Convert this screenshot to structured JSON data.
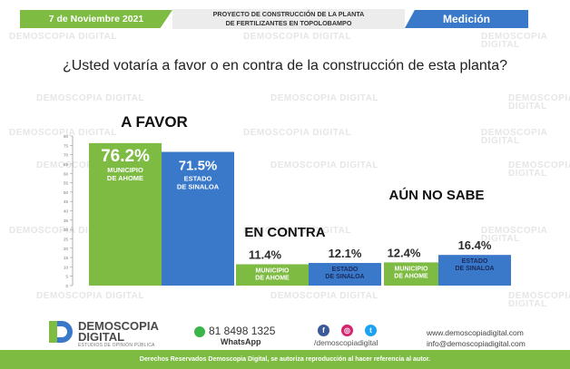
{
  "header": {
    "date": "7 de Noviembre 2021",
    "project_line1": "PROYECTO DE CONSTRUCCIÓN DE LA PLANTA",
    "project_line2": "DE FERTILIZANTES EN TOPOLOBAMPO",
    "section": "Medición"
  },
  "question": "¿Usted votaría a favor o en contra de la construcción de esta planta?",
  "watermark": "DEMOSCOPIA DIGITAL",
  "colors": {
    "green": "#7dbb42",
    "blue": "#3a78c9",
    "grey_axis": "#999999"
  },
  "chart_data": {
    "type": "bar",
    "categories": [
      "A FAVOR",
      "EN CONTRA",
      "AÚN NO SABE"
    ],
    "series": [
      {
        "name": "MUNICIPIO DE AHOME",
        "values": [
          76.2,
          11.4,
          12.4
        ],
        "labels": [
          "76.2%",
          "11.4%",
          "12.4%"
        ]
      },
      {
        "name": "ESTADO DE SINALOA",
        "values": [
          71.5,
          12.1,
          16.4
        ],
        "labels": [
          "71.5%",
          "12.1%",
          "16.4%"
        ]
      }
    ],
    "series_label_lines": [
      [
        "MUNICIPIO",
        "DE AHOME"
      ],
      [
        "ESTADO",
        "DE SINALOA"
      ]
    ],
    "yticks": [
      "0",
      "5",
      "10",
      "15",
      "20",
      "25",
      "30",
      "35",
      "40",
      "45",
      "50",
      "55",
      "60",
      "65",
      "70",
      "75",
      "80"
    ],
    "ylim": [
      0,
      80
    ]
  },
  "footer": {
    "brand": "DEMOSCOPIA",
    "brand2": "DIGITAL",
    "tagline": "ESTUDIOS DE OPINIÓN PÚBLICA",
    "phone": "81 8498 1325",
    "whatsapp": "WhatsApp",
    "handle": "/demoscopiadigital",
    "web": "www.demoscopiadigital.com",
    "email": "info@demoscopiadigital.com",
    "rights": "Derechos Reservados Demoscopia Digital, se autoriza reproducción al hacer referencia al autor."
  }
}
